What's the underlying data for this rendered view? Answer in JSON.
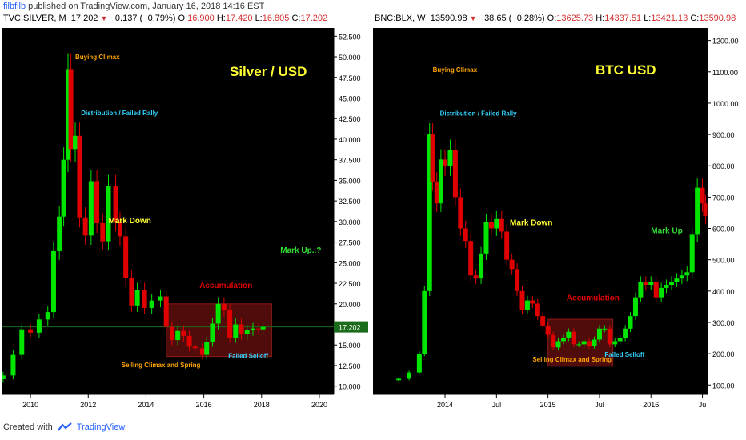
{
  "header": {
    "username": "filbfilb",
    "published_text": " published on TradingView.com, January 16, 2018 14:16 EST"
  },
  "footer": {
    "created_with": "Created with",
    "brand": "TradingView"
  },
  "colors": {
    "background": "#000000",
    "up": "#00e600",
    "down": "#e00000",
    "box": "#6b0f0f",
    "hline": "#1a6b1a"
  },
  "chart_data": [
    {
      "type": "candlestick",
      "symbol_line": {
        "symbol": "TVC:SILVER, M",
        "last": "17.202",
        "change": "−0.137 (−0.79%)",
        "o_label": "O:",
        "o": "16.900",
        "h_label": "H:",
        "h": "17.420",
        "l_label": "L:",
        "l": "16.805",
        "c_label": "C:",
        "c": "17.202"
      },
      "title": "Silver / USD",
      "x_ticks": [
        "2010",
        "2012",
        "2014",
        "2016",
        "2018",
        "2020"
      ],
      "x_tick_values": [
        2010,
        2012,
        2014,
        2016,
        2018,
        2020
      ],
      "xlim": [
        2009.0,
        2020.5
      ],
      "y_ticks": [
        "52.500",
        "50.000",
        "47.500",
        "45.000",
        "42.500",
        "40.000",
        "37.500",
        "35.000",
        "32.500",
        "30.000",
        "27.500",
        "25.000",
        "22.500",
        "20.000",
        "17.500",
        "15.000",
        "12.500",
        "10.000"
      ],
      "y_tick_values": [
        52.5,
        50,
        47.5,
        45,
        42.5,
        40,
        37.5,
        35,
        32.5,
        30,
        27.5,
        25,
        22.5,
        20,
        17.5,
        15,
        12.5,
        10
      ],
      "ylim": [
        9.0,
        53.5
      ],
      "hline": 17.2,
      "last_price_label": "17.202",
      "accumulation_box": {
        "x0": 2014.7,
        "x1": 2018.35,
        "y0": 13.6,
        "y1": 20.0
      },
      "annotations": [
        {
          "text": "Buying Climax",
          "x": 2011.55,
          "y": 49.7,
          "color": "#ffa500"
        },
        {
          "text": "Distribution / Failed Rally",
          "x": 2011.75,
          "y": 42.9,
          "color": "#33d6ff"
        },
        {
          "text": "Mark Down",
          "x": 2012.7,
          "y": 29.8,
          "color": "#ffff33",
          "big": true
        },
        {
          "text": "Accumulation",
          "x": 2015.85,
          "y": 21.9,
          "color": "#e00000",
          "big": true
        },
        {
          "text": "Mark Up..?",
          "x": 2018.65,
          "y": 26.2,
          "color": "#33dd33",
          "big": true
        },
        {
          "text": "Selling Climax and Spring",
          "x": 2013.15,
          "y": 12.3,
          "color": "#ffa500"
        },
        {
          "text": "Failed Selloff",
          "x": 2016.85,
          "y": 13.4,
          "color": "#33d6ff"
        }
      ],
      "series": [
        {
          "date": 2009.05,
          "close": 11.3
        },
        {
          "date": 2009.4,
          "close": 13.8
        },
        {
          "date": 2009.7,
          "close": 16.9
        },
        {
          "date": 2010.0,
          "close": 16.5
        },
        {
          "date": 2010.3,
          "close": 18.1
        },
        {
          "date": 2010.6,
          "close": 19.0
        },
        {
          "date": 2010.8,
          "close": 26.4
        },
        {
          "date": 2011.0,
          "close": 30.6
        },
        {
          "date": 2011.15,
          "close": 37.5
        },
        {
          "date": 2011.3,
          "close": 48.5
        },
        {
          "date": 2011.4,
          "close": 38.8
        },
        {
          "date": 2011.55,
          "close": 40.4
        },
        {
          "date": 2011.7,
          "close": 30.5
        },
        {
          "date": 2011.9,
          "close": 28.3
        },
        {
          "date": 2012.1,
          "close": 34.9
        },
        {
          "date": 2012.3,
          "close": 29.8
        },
        {
          "date": 2012.5,
          "close": 27.6
        },
        {
          "date": 2012.7,
          "close": 34.3
        },
        {
          "date": 2012.95,
          "close": 30.0
        },
        {
          "date": 2013.1,
          "close": 28.2
        },
        {
          "date": 2013.3,
          "close": 23.1
        },
        {
          "date": 2013.5,
          "close": 19.8
        },
        {
          "date": 2013.7,
          "close": 21.7
        },
        {
          "date": 2013.95,
          "close": 19.5
        },
        {
          "date": 2014.2,
          "close": 20.4
        },
        {
          "date": 2014.5,
          "close": 20.9
        },
        {
          "date": 2014.7,
          "close": 17.2
        },
        {
          "date": 2014.9,
          "close": 15.6
        },
        {
          "date": 2015.1,
          "close": 16.7
        },
        {
          "date": 2015.3,
          "close": 16.1
        },
        {
          "date": 2015.5,
          "close": 14.8
        },
        {
          "date": 2015.7,
          "close": 14.6
        },
        {
          "date": 2015.95,
          "close": 13.8
        },
        {
          "date": 2016.1,
          "close": 15.4
        },
        {
          "date": 2016.3,
          "close": 17.6
        },
        {
          "date": 2016.5,
          "close": 20.0
        },
        {
          "date": 2016.7,
          "close": 19.2
        },
        {
          "date": 2016.9,
          "close": 15.9
        },
        {
          "date": 2017.1,
          "close": 17.5
        },
        {
          "date": 2017.3,
          "close": 16.3
        },
        {
          "date": 2017.5,
          "close": 16.8
        },
        {
          "date": 2017.7,
          "close": 17.0
        },
        {
          "date": 2017.9,
          "close": 16.9
        },
        {
          "date": 2018.05,
          "close": 17.2
        }
      ]
    },
    {
      "type": "candlestick",
      "symbol_line": {
        "symbol": "BNC:BLX, W",
        "last": "13590.98",
        "change": "−38.65 (−0.28%)",
        "o_label": "O:",
        "o": "13625.73",
        "h_label": "H:",
        "h": "14337.51",
        "l_label": "L:",
        "l": "13421.13",
        "c_label": "C:",
        "c": "13590.98"
      },
      "title": "BTC USD",
      "x_ticks": [
        "2014",
        "Jul",
        "2015",
        "Jul",
        "2016",
        "Ju"
      ],
      "x_tick_values": [
        2014.0,
        2014.5,
        2015.0,
        2015.5,
        2016.0,
        2016.5
      ],
      "xlim": [
        2013.3,
        2016.55
      ],
      "y_ticks": [
        "1200.00",
        "1100.00",
        "1000.00",
        "900.00",
        "800.00",
        "700.00",
        "600.00",
        "500.00",
        "400.00",
        "300.00",
        "200.00",
        "100.00"
      ],
      "y_tick_values": [
        1200,
        1100,
        1000,
        900,
        800,
        700,
        600,
        500,
        400,
        300,
        200,
        100
      ],
      "ylim": [
        70,
        1240
      ],
      "accumulation_box": {
        "x0": 2015.0,
        "x1": 2015.63,
        "y0": 160,
        "y1": 310
      },
      "annotations": [
        {
          "text": "Buying Climax",
          "x": 2013.88,
          "y": 1100,
          "color": "#ffa500"
        },
        {
          "text": "Distribution / Failed Rally",
          "x": 2013.95,
          "y": 960,
          "color": "#33d6ff"
        },
        {
          "text": "Mark Down",
          "x": 2014.63,
          "y": 610,
          "color": "#ffff33",
          "big": true
        },
        {
          "text": "Accumulation",
          "x": 2015.18,
          "y": 370,
          "color": "#e00000",
          "big": true
        },
        {
          "text": "Mark Up",
          "x": 2016.0,
          "y": 585,
          "color": "#33dd33",
          "big": true
        },
        {
          "text": "BTC USD",
          "x": 2016.0,
          "y": 1000,
          "color": "#ffff33",
          "title": true
        },
        {
          "text": "Selling Climax and Spring",
          "x": 2014.85,
          "y": 175,
          "color": "#ffa500"
        },
        {
          "text": "Failed Selloff",
          "x": 2015.55,
          "y": 190,
          "color": "#33d6ff"
        }
      ],
      "series": [
        {
          "date": 2013.55,
          "close": 120
        },
        {
          "date": 2013.65,
          "close": 140
        },
        {
          "date": 2013.75,
          "close": 200
        },
        {
          "date": 2013.8,
          "close": 400
        },
        {
          "date": 2013.85,
          "close": 900
        },
        {
          "date": 2013.88,
          "close": 750
        },
        {
          "date": 2013.92,
          "close": 680
        },
        {
          "date": 2013.96,
          "close": 820
        },
        {
          "date": 2014.0,
          "close": 800
        },
        {
          "date": 2014.05,
          "close": 850
        },
        {
          "date": 2014.1,
          "close": 700
        },
        {
          "date": 2014.15,
          "close": 600
        },
        {
          "date": 2014.2,
          "close": 560
        },
        {
          "date": 2014.25,
          "close": 450
        },
        {
          "date": 2014.3,
          "close": 440
        },
        {
          "date": 2014.35,
          "close": 520
        },
        {
          "date": 2014.4,
          "close": 620
        },
        {
          "date": 2014.45,
          "close": 600
        },
        {
          "date": 2014.5,
          "close": 630
        },
        {
          "date": 2014.55,
          "close": 590
        },
        {
          "date": 2014.6,
          "close": 500
        },
        {
          "date": 2014.65,
          "close": 470
        },
        {
          "date": 2014.7,
          "close": 400
        },
        {
          "date": 2014.75,
          "close": 340
        },
        {
          "date": 2014.8,
          "close": 370
        },
        {
          "date": 2014.85,
          "close": 360
        },
        {
          "date": 2014.9,
          "close": 320
        },
        {
          "date": 2014.95,
          "close": 290
        },
        {
          "date": 2015.0,
          "close": 260
        },
        {
          "date": 2015.05,
          "close": 220
        },
        {
          "date": 2015.1,
          "close": 240
        },
        {
          "date": 2015.15,
          "close": 250
        },
        {
          "date": 2015.2,
          "close": 270
        },
        {
          "date": 2015.25,
          "close": 230
        },
        {
          "date": 2015.3,
          "close": 230
        },
        {
          "date": 2015.35,
          "close": 240
        },
        {
          "date": 2015.4,
          "close": 225
        },
        {
          "date": 2015.45,
          "close": 245
        },
        {
          "date": 2015.5,
          "close": 280
        },
        {
          "date": 2015.55,
          "close": 280
        },
        {
          "date": 2015.6,
          "close": 230
        },
        {
          "date": 2015.65,
          "close": 240
        },
        {
          "date": 2015.7,
          "close": 250
        },
        {
          "date": 2015.75,
          "close": 280
        },
        {
          "date": 2015.8,
          "close": 320
        },
        {
          "date": 2015.85,
          "close": 380
        },
        {
          "date": 2015.9,
          "close": 430
        },
        {
          "date": 2015.95,
          "close": 420
        },
        {
          "date": 2016.0,
          "close": 430
        },
        {
          "date": 2016.05,
          "close": 380
        },
        {
          "date": 2016.1,
          "close": 410
        },
        {
          "date": 2016.15,
          "close": 420
        },
        {
          "date": 2016.2,
          "close": 430
        },
        {
          "date": 2016.25,
          "close": 440
        },
        {
          "date": 2016.3,
          "close": 450
        },
        {
          "date": 2016.35,
          "close": 460
        },
        {
          "date": 2016.4,
          "close": 580
        },
        {
          "date": 2016.45,
          "close": 730
        },
        {
          "date": 2016.5,
          "close": 680
        },
        {
          "date": 2016.53,
          "close": 640
        }
      ]
    }
  ]
}
